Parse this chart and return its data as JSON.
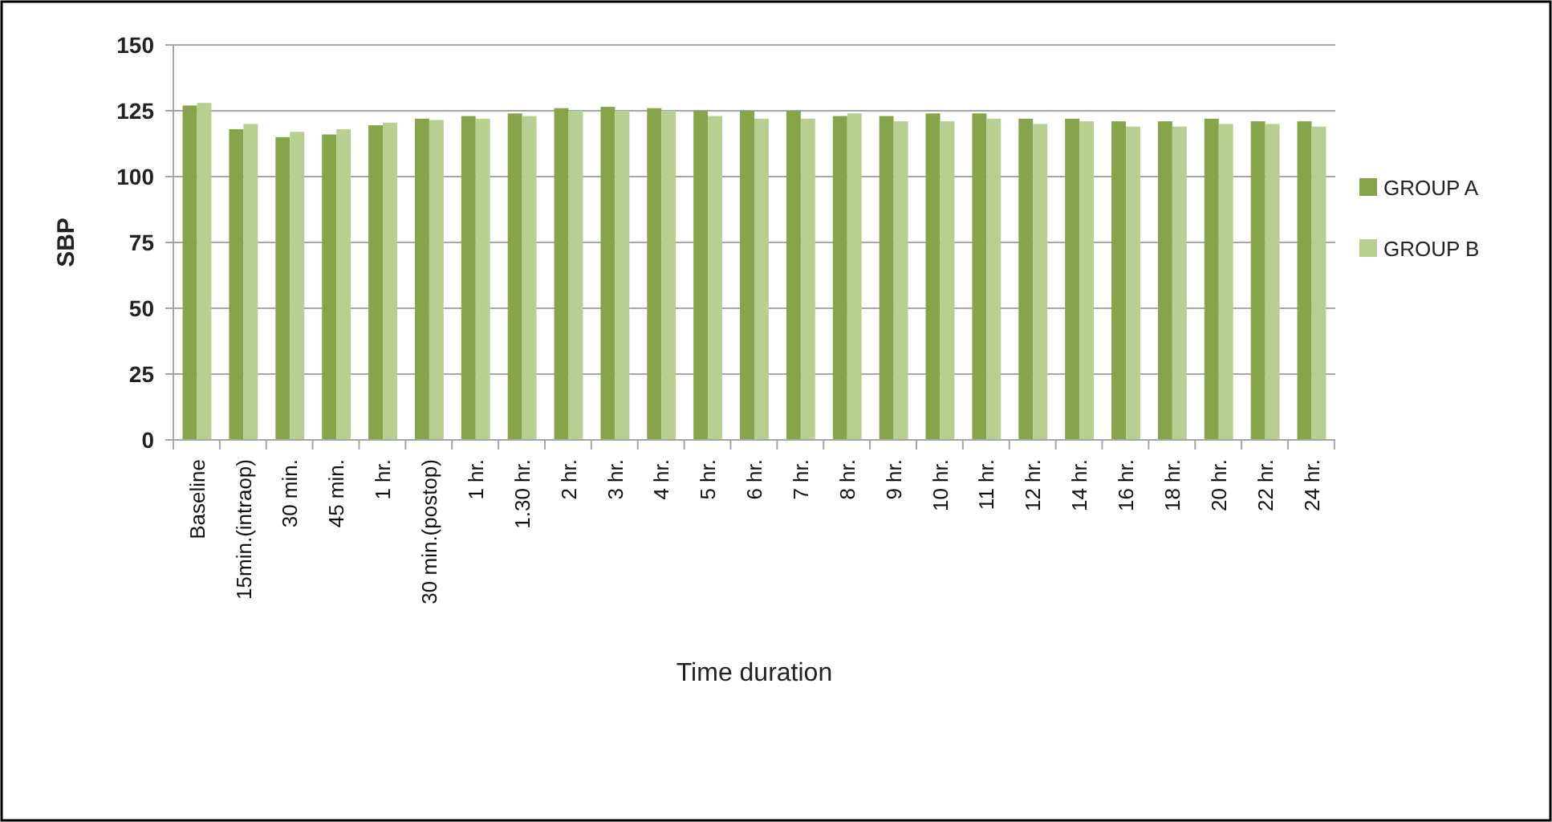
{
  "chart_data": {
    "type": "bar",
    "xlabel": "Time duration",
    "ylabel": "SBP",
    "categories": [
      "Baseline",
      "15min.(intraop)",
      "30 min.",
      "45 min.",
      "1 hr.",
      "30 min.(postop)",
      "1 hr.",
      "1.30 hr.",
      "2 hr.",
      "3 hr.",
      "4 hr.",
      "5 hr.",
      "6 hr.",
      "7 hr.",
      "8 hr.",
      "9 hr.",
      "10 hr.",
      "11 hr.",
      "12 hr.",
      "14 hr.",
      "16 hr.",
      "18 hr.",
      "20 hr.",
      "22 hr.",
      "24 hr."
    ],
    "series": [
      {
        "name": "GROUP A",
        "color": "#86a44a",
        "values": [
          127,
          118,
          115,
          116,
          119.5,
          122,
          123,
          124,
          126,
          126.5,
          126,
          125,
          125,
          125,
          123,
          123,
          124,
          124,
          122,
          122,
          121,
          121,
          122,
          121,
          121
        ]
      },
      {
        "name": "GROUP B",
        "color": "#b8cf92",
        "values": [
          128,
          120,
          117,
          118,
          120.5,
          121.5,
          122,
          123,
          125,
          125,
          125,
          123,
          122,
          122,
          124,
          121,
          121,
          122,
          120,
          121,
          119,
          119,
          120,
          120,
          119
        ]
      }
    ],
    "ylim": [
      0,
      150
    ],
    "yticks": [
      0,
      25,
      50,
      75,
      100,
      125,
      150
    ],
    "grid": "y",
    "legend": "right"
  }
}
